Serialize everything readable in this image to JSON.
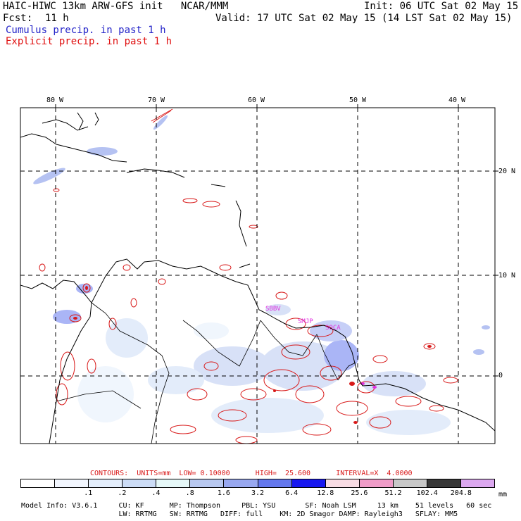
{
  "header": {
    "title_left": "HAIC-HIWC 13km ARW-GFS init   NCAR/MMM",
    "init": "Init: 06 UTC Sat 02 May 15",
    "fcst_label": "Fcst:",
    "fcst_value": "11 h",
    "valid": "Valid: 17 UTC Sat 02 May 15 (14 LST Sat 02 May 15)",
    "field1": "Cumulus precip. in past 1 h",
    "field2": "Explicit precip. in past 1 h"
  },
  "colors": {
    "field1": "#2323c8",
    "field2": "#e01010",
    "cumulus_light": "#c8d8f8",
    "cumulus_mid": "#7890e8",
    "cumulus_dark": "#3840e0",
    "explicit": "#d81818",
    "magenta": "#e030e0"
  },
  "map": {
    "lon_labels": [
      "80 W",
      "70 W",
      "60 W",
      "50 W",
      "40 W"
    ],
    "lat_labels": [
      "20 N",
      "10 N",
      "0"
    ],
    "stations": [
      "SBBV",
      "SMJP",
      "SOCA"
    ]
  },
  "contours": {
    "text": "CONTOURS:  UNITS=mm  LOW= 0.10000      HIGH=  25.600      INTERVAL=X  4.0000"
  },
  "scale": {
    "colors": [
      "#ffffff",
      "#f2f6fe",
      "#e4eefc",
      "#ccdcf6",
      "#e6f8f8",
      "#b8c8f0",
      "#98a8f0",
      "#6478ee",
      "#1818f0",
      "#f8dce4",
      "#f09cc8",
      "#c8c8c8",
      "#383838",
      "#dca8f0"
    ],
    "labels": [
      ".1",
      ".2",
      ".4",
      ".8",
      "1.6",
      "3.2",
      "6.4",
      "12.8",
      "25.6",
      "51.2",
      "102.4",
      "204.8"
    ],
    "unit": "mm"
  },
  "model_info": {
    "line1": "Model Info: V3.6.1     CU: KF      MP: Thompson     PBL: YSU       SF: Noah LSM     13 km    51 levels   60 sec",
    "line2": "                       LW: RRTMG   SW: RRTMG   DIFF: full    KM: 2D Smagor DAMP: Rayleigh3   SFLAY: MM5"
  }
}
